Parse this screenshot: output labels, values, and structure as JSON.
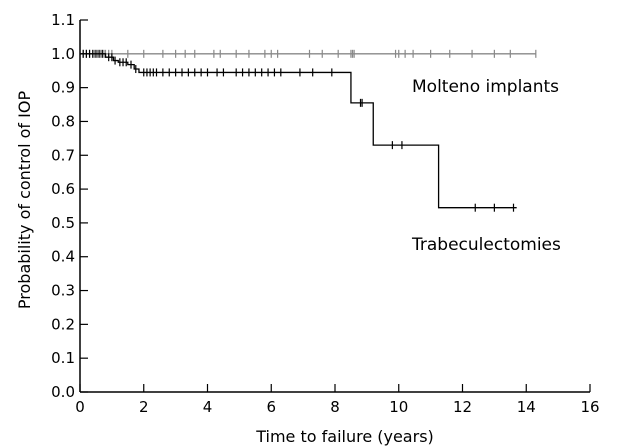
{
  "chart_data": {
    "type": "line",
    "step": true,
    "xlabel": "Time to failure (years)",
    "ylabel": "Probability of control of IOP",
    "xlim": [
      0,
      16
    ],
    "ylim": [
      0.0,
      1.1
    ],
    "x_ticks": [
      "0",
      "2",
      "4",
      "6",
      "8",
      "10",
      "12",
      "14",
      "16"
    ],
    "y_ticks": [
      "0.0",
      "0.1",
      "0.2",
      "0.3",
      "0.4",
      "0.5",
      "0.6",
      "0.7",
      "0.8",
      "0.9",
      "1.0",
      "1.1"
    ],
    "grid": false,
    "legend": "none",
    "series": [
      {
        "name": "Molteno implants",
        "color": "#888888",
        "steps": [
          [
            0,
            1.0
          ],
          [
            14.3,
            1.0
          ]
        ],
        "censored": [
          0.1,
          0.2,
          0.3,
          0.45,
          0.55,
          0.65,
          0.75,
          0.8,
          0.9,
          1.0,
          1.5,
          2.0,
          2.6,
          3.0,
          3.3,
          3.6,
          4.2,
          4.4,
          4.9,
          5.3,
          5.8,
          6.0,
          6.2,
          7.2,
          7.6,
          8.1,
          8.5,
          8.55,
          8.6,
          9.9,
          10.0,
          10.2,
          10.45,
          11.0,
          11.6,
          12.3,
          13.0,
          13.5,
          14.3
        ]
      },
      {
        "name": "Trabeculectomies",
        "color": "#000000",
        "steps": [
          [
            0,
            1.0
          ],
          [
            0.8,
            0.99
          ],
          [
            1.05,
            0.98
          ],
          [
            1.2,
            0.975
          ],
          [
            1.5,
            0.968
          ],
          [
            1.7,
            0.955
          ],
          [
            1.85,
            0.945
          ],
          [
            8.5,
            0.855
          ],
          [
            9.2,
            0.73
          ],
          [
            11.25,
            0.545
          ],
          [
            13.7,
            0.545
          ]
        ],
        "censored": [
          0.1,
          0.2,
          0.3,
          0.4,
          0.5,
          0.6,
          0.7,
          0.9,
          1.0,
          1.1,
          1.25,
          1.35,
          1.45,
          1.6,
          1.75,
          2.0,
          2.1,
          2.2,
          2.3,
          2.4,
          2.6,
          2.8,
          3.0,
          3.2,
          3.4,
          3.6,
          3.8,
          4.0,
          4.3,
          4.5,
          4.9,
          5.1,
          5.3,
          5.5,
          5.7,
          5.9,
          6.1,
          6.3,
          6.9,
          7.3,
          7.9,
          8.8,
          8.85,
          9.8,
          10.1,
          12.4,
          13.0,
          13.6
        ]
      }
    ]
  }
}
